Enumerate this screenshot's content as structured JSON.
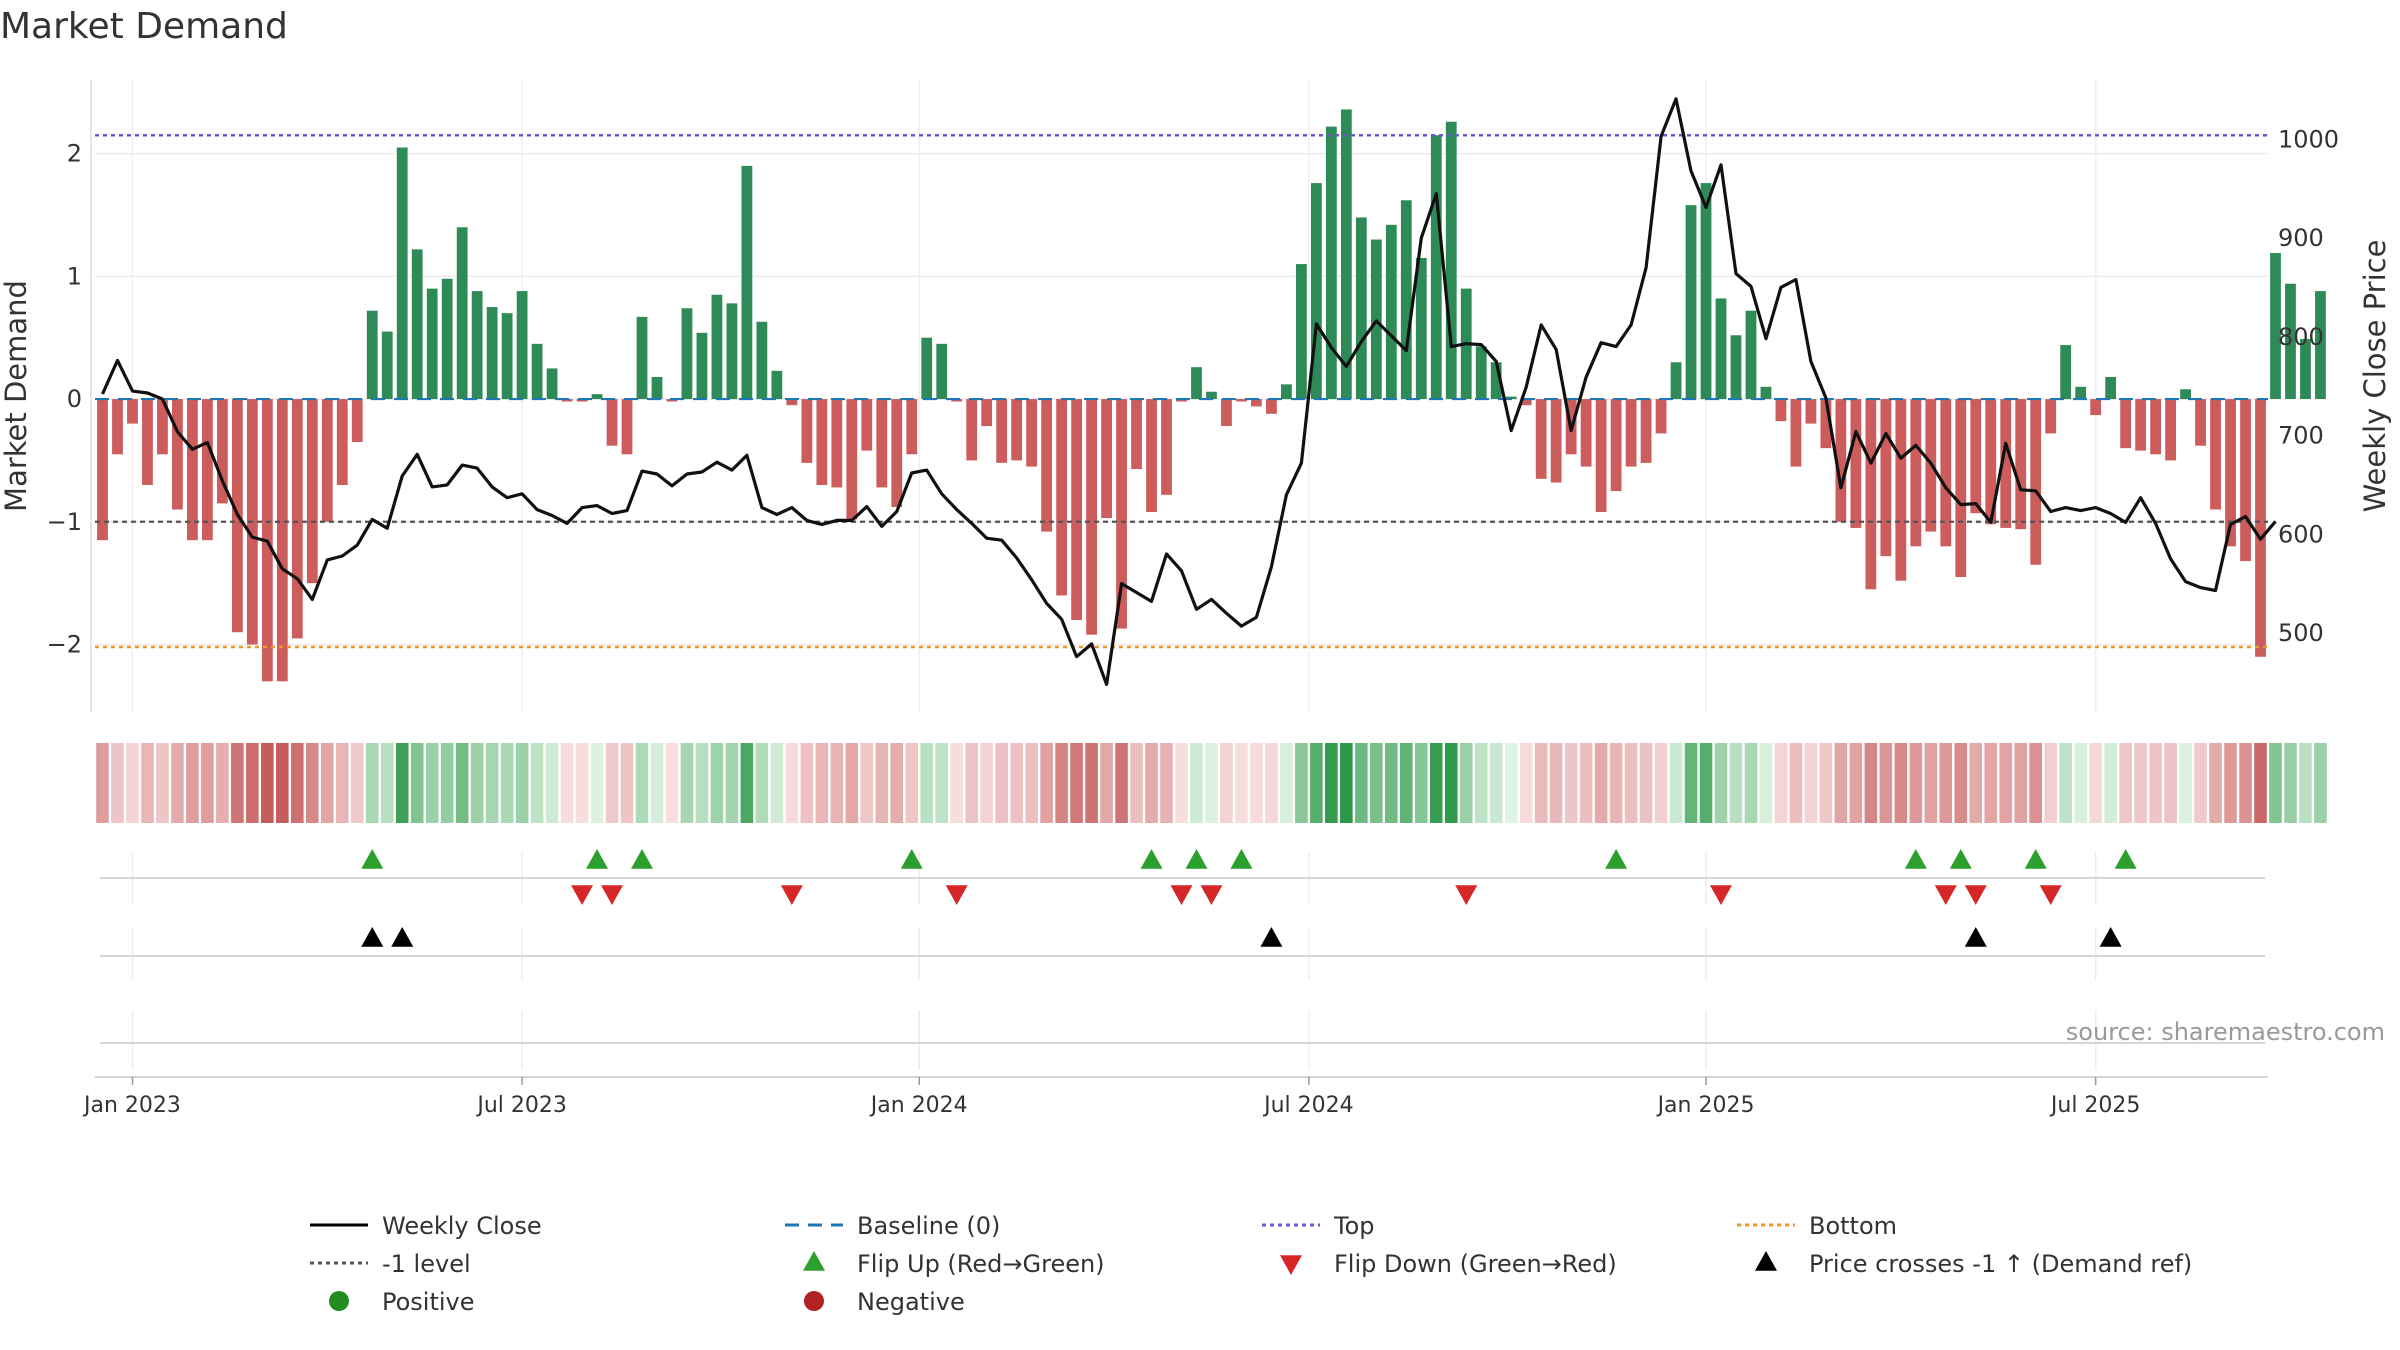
{
  "chart_data": {
    "type": "bar+line",
    "title": "Market Demand",
    "ylabel_left": "Market Demand",
    "ylabel_right": "Weekly Close Price",
    "ylim_left": [
      -2.55,
      2.6
    ],
    "ylim_right": [
      420,
      1060
    ],
    "yticks_left": [
      {
        "value": 2,
        "label": "2"
      },
      {
        "value": 1,
        "label": "1"
      },
      {
        "value": 0,
        "label": "0"
      },
      {
        "value": -1,
        "label": "−1"
      },
      {
        "value": -2,
        "label": "−2"
      }
    ],
    "yticks_right": [
      {
        "value": 1000,
        "label": "1000"
      },
      {
        "value": 900,
        "label": "900"
      },
      {
        "value": 800,
        "label": "800"
      },
      {
        "value": 700,
        "label": "700"
      },
      {
        "value": 600,
        "label": "600"
      },
      {
        "value": 500,
        "label": "500"
      }
    ],
    "xticks": [
      {
        "week": 2,
        "label": "Jan 2023"
      },
      {
        "week": 28,
        "label": "Jul 2023"
      },
      {
        "week": 54.5,
        "label": "Jan 2024"
      },
      {
        "week": 80.5,
        "label": "Jul 2024"
      },
      {
        "week": 107,
        "label": "Jan 2025"
      },
      {
        "week": 133,
        "label": "Jul 2025"
      }
    ],
    "start_week": "2022-12-25",
    "week_count": 145,
    "demand": [
      -1.15,
      -0.45,
      -0.2,
      -0.7,
      -0.45,
      -0.9,
      -1.15,
      -1.15,
      -0.85,
      -1.9,
      -2.0,
      -2.3,
      -2.3,
      -1.95,
      -1.5,
      -1.0,
      -0.7,
      -0.35,
      0.72,
      0.55,
      2.05,
      1.22,
      0.9,
      0.98,
      1.4,
      0.88,
      0.75,
      0.7,
      0.88,
      0.45,
      0.25,
      -0.02,
      -0.02,
      0.04,
      -0.38,
      -0.45,
      0.67,
      0.18,
      -0.02,
      0.74,
      0.54,
      0.85,
      0.78,
      1.9,
      0.63,
      0.23,
      -0.05,
      -0.52,
      -0.7,
      -0.72,
      -0.98,
      -0.42,
      -0.72,
      -0.88,
      -0.45,
      0.5,
      0.45,
      -0.02,
      -0.5,
      -0.22,
      -0.52,
      -0.5,
      -0.55,
      -1.08,
      -1.6,
      -1.8,
      -1.92,
      -0.97,
      -1.87,
      -0.57,
      -0.92,
      -0.78,
      -0.02,
      0.26,
      0.06,
      -0.22,
      -0.02,
      -0.06,
      -0.12,
      0.12,
      1.1,
      1.76,
      2.22,
      2.36,
      1.48,
      1.3,
      1.42,
      1.62,
      1.15,
      2.15,
      2.26,
      0.9,
      0.43,
      0.3,
      0.02,
      -0.05,
      -0.65,
      -0.68,
      -0.45,
      -0.55,
      -0.92,
      -0.75,
      -0.55,
      -0.52,
      -0.28,
      0.3,
      1.58,
      1.76,
      0.82,
      0.52,
      0.72,
      0.1,
      -0.18,
      -0.55,
      -0.2,
      -0.4,
      -1.0,
      -1.05,
      -1.55,
      -1.28,
      -1.48,
      -1.2,
      -1.08,
      -1.2,
      -1.45,
      -0.93,
      -1.02,
      -1.05,
      -1.06,
      -1.35,
      -0.28,
      0.44,
      0.1,
      -0.13,
      0.18,
      -0.4,
      -0.42,
      -0.45,
      -0.5,
      0.08,
      -0.38,
      -0.9,
      -1.2,
      -1.32,
      -2.1,
      1.19,
      0.94,
      0.49,
      0.88
    ],
    "close": [
      742,
      776,
      745,
      743,
      737,
      704,
      686,
      693,
      654,
      620,
      597,
      593,
      565,
      555,
      534,
      574,
      578,
      589,
      615,
      606,
      659,
      681,
      648,
      650,
      670,
      667,
      648,
      637,
      641,
      625,
      619,
      611,
      627,
      629,
      621,
      624,
      664,
      661,
      649,
      661,
      663,
      673,
      665,
      680,
      627,
      620,
      627,
      614,
      610,
      614,
      614,
      628,
      608,
      623,
      662,
      665,
      641,
      625,
      611,
      596,
      594,
      576,
      554,
      530,
      514,
      476,
      489,
      448,
      550,
      541,
      532,
      580,
      563,
      524,
      534,
      520,
      507,
      516,
      567,
      640,
      672,
      813,
      789,
      770,
      795,
      816,
      801,
      786,
      900,
      945,
      790,
      793,
      792,
      775,
      705,
      749,
      812,
      787,
      705,
      759,
      794,
      790,
      812,
      870,
      1003,
      1041,
      968,
      931,
      974,
      864,
      851,
      798,
      850,
      858,
      775,
      738,
      647,
      704,
      672,
      702,
      677,
      690,
      672,
      647,
      630,
      631,
      612,
      692,
      645,
      644,
      623,
      627,
      624,
      627,
      621,
      612,
      637,
      611,
      575,
      552,
      546,
      543,
      610,
      618,
      595,
      613
    ],
    "baseline": 0,
    "top": 2.15,
    "bottom": -2.02,
    "minus_one_level": -1,
    "flip_up_weeks": [
      18,
      33,
      36,
      54,
      70,
      73,
      76,
      101,
      121,
      124,
      129,
      135
    ],
    "flip_down_weeks": [
      32,
      34,
      46,
      57,
      72,
      74,
      91,
      108,
      123,
      125,
      130
    ],
    "price_cross_weeks": [
      18,
      20,
      78,
      125,
      134
    ],
    "heat_strip": {
      "positive": "Positive",
      "negative": "Negative"
    },
    "source": "source: sharemaestro.com",
    "legend": [
      {
        "label": "Weekly Close",
        "kind": "line-solid",
        "color": "#000000"
      },
      {
        "label": "Baseline (0)",
        "kind": "line-dash",
        "color": "#1f77b4"
      },
      {
        "label": "Top",
        "kind": "line-dot",
        "color": "#6a5acd"
      },
      {
        "label": "Bottom",
        "kind": "line-dot",
        "color": "#e69a2e"
      },
      {
        "label": "-1 level",
        "kind": "line-dot",
        "color": "#555555"
      },
      {
        "label": "Flip Up (Red→Green)",
        "kind": "tri-up",
        "color": "#2ca02c"
      },
      {
        "label": "Flip Down (Green→Red)",
        "kind": "tri-down",
        "color": "#d62728"
      },
      {
        "label": "Price crosses -1 ↑ (Demand ref)",
        "kind": "tri-up",
        "color": "#000000"
      },
      {
        "label": "Positive",
        "kind": "dot",
        "color": "#228b22"
      },
      {
        "label": "Negative",
        "kind": "dot",
        "color": "#b22222"
      }
    ],
    "colors": {
      "positive": "#2e8b57",
      "negative": "#cd5c5c",
      "line": "#111111"
    }
  }
}
